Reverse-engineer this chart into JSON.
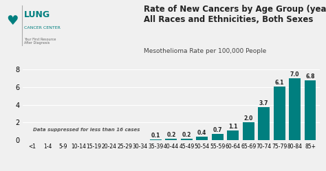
{
  "title": "Rate of New Cancers by Age Group (years),\nAll Races and Ethnicities, Both Sexes",
  "subtitle": "Mesothelioma Rate per 100,000 People",
  "categories": [
    "<1",
    "1-4",
    "5-9",
    "10-14",
    "15-19",
    "20-24",
    "25-29",
    "30-34",
    "35-39",
    "40-44",
    "45-49",
    "50-54",
    "55-59",
    "60-64",
    "65-69",
    "70-74",
    "75-79",
    "80-84",
    "85+"
  ],
  "values": [
    0,
    0,
    0,
    0,
    0,
    0,
    0,
    0,
    0.1,
    0.2,
    0.2,
    0.4,
    0.7,
    1.1,
    2.0,
    3.7,
    6.1,
    7.0,
    6.8
  ],
  "suppressed_count": 8,
  "bar_color": "#007f7f",
  "bar_color_suppressed": "#b2d8d8",
  "bg_color": "#f0f0f0",
  "title_color": "#222222",
  "subtitle_color": "#444444",
  "suppressed_text": "Data suppressed for less than 16 cases",
  "ylim": [
    0,
    8.5
  ],
  "yticks": [
    0,
    2,
    4,
    6,
    8
  ],
  "value_labels": {
    "35-39": "0.1",
    "40-44": "0.2",
    "45-49": "0.2",
    "50-54": "0.4",
    "55-59": "0.7",
    "60-64": "1.1",
    "65-69": "2.0",
    "70-74": "3.7",
    "75-79": "6.1",
    "80-84": "7.0",
    "85+": "6.8"
  }
}
